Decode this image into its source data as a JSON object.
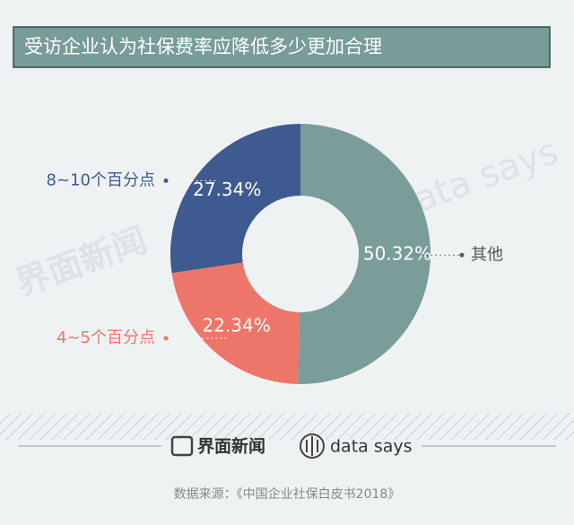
{
  "chart_data": {
    "type": "pie",
    "title": "受访企业认为社保费率应降低多少更加合理",
    "categories": [
      "其他",
      "4~5个百分点",
      "8~10个百分点"
    ],
    "values": [
      50.32,
      22.34,
      27.34
    ],
    "value_labels": [
      "50.32%",
      "22.34%",
      "27.34%"
    ],
    "colors": [
      "#7b9d9a",
      "#ee756a",
      "#3f5a8f"
    ],
    "label_colors": [
      "#555555",
      "#ee756a",
      "#3f5a8f"
    ],
    "brand": "界面新闻",
    "brand2": "data says",
    "source": "数据来源：《中国企业社保白皮书2018》"
  }
}
